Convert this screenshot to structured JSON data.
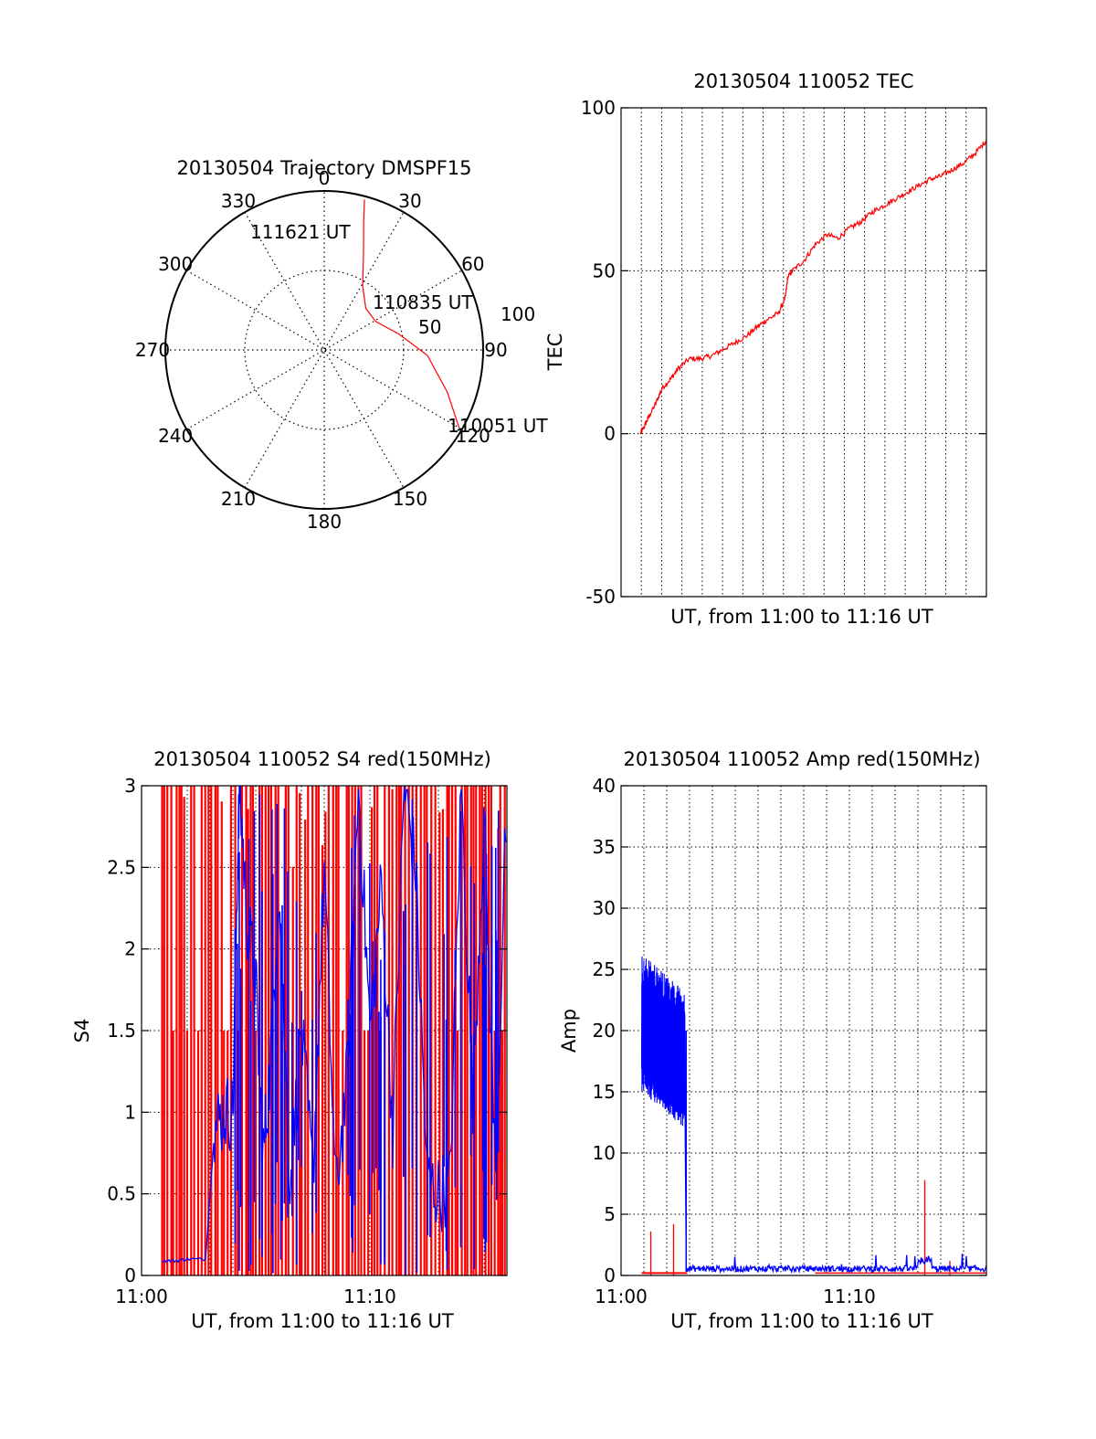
{
  "chart_data": [
    {
      "id": "trajectory",
      "type": "polar",
      "title": "20130504 Trajectory DMSPF15",
      "azimuth_labels": [
        "0",
        "30",
        "60",
        "90",
        "120",
        "150",
        "180",
        "210",
        "240",
        "270",
        "300",
        "330"
      ],
      "radial_labels": [
        "50",
        "100"
      ],
      "radial_range": [
        0,
        100
      ],
      "series": [
        {
          "name": "trajectory",
          "color": "#ff0000",
          "points": [
            [
              120,
              98
            ],
            [
              109,
              82
            ],
            [
              93,
              65
            ],
            [
              78,
              48
            ],
            [
              61,
              37
            ],
            [
              45,
              37
            ],
            [
              31,
              47
            ],
            [
              22,
              66
            ],
            [
              17,
              85
            ],
            [
              15,
              98
            ]
          ]
        }
      ],
      "annotations": [
        {
          "text": "111621 UT",
          "az": 337,
          "r": 80
        },
        {
          "text": "110835 UT",
          "az": 72,
          "r": 58
        },
        {
          "text": "110051 UT",
          "az": 118,
          "r": 104
        }
      ]
    },
    {
      "id": "tec",
      "type": "line",
      "title": "20130504 110052 TEC",
      "xlabel": "UT, from 11:00 to 11:16 UT",
      "ylabel": "TEC",
      "xlim": [
        0,
        16
      ],
      "ylim": [
        -50,
        100
      ],
      "yticks": [
        "-50",
        "0",
        "50",
        "100"
      ],
      "xticks": [],
      "grid": true,
      "series": [
        {
          "name": "TEC",
          "color": "#ff0000",
          "x": [
            0.85,
            1.0,
            1.2,
            1.5,
            1.8,
            2.2,
            2.5,
            3.0,
            3.5,
            4.0,
            4.5,
            5.0,
            5.5,
            6.0,
            6.4,
            6.9,
            7.2,
            7.3,
            7.5,
            8.0,
            8.5,
            9.0,
            9.5,
            10.0,
            10.5,
            11.0,
            11.5,
            12.0,
            12.5,
            13.0,
            13.5,
            14.0,
            14.5,
            15.0,
            15.5,
            16.0
          ],
          "y": [
            0,
            2,
            5,
            9,
            14,
            17,
            20,
            23,
            23,
            24,
            26,
            28,
            30,
            33,
            35,
            37,
            42,
            48,
            50,
            53,
            58,
            61,
            60,
            63,
            65,
            68,
            70,
            72,
            74,
            76,
            78,
            79,
            81,
            83,
            86,
            90
          ]
        }
      ]
    },
    {
      "id": "s4",
      "type": "line",
      "title": "20130504 110052 S4 red(150MHz)",
      "xlabel": "UT, from 11:00 to 11:16 UT",
      "ylabel": "S4",
      "xlim": [
        0,
        16
      ],
      "ylim": [
        0,
        3
      ],
      "yticks": [
        "0",
        "0.5",
        "1",
        "1.5",
        "2",
        "2.5",
        "3"
      ],
      "xticks": [
        {
          "value": 0,
          "label": "11:00"
        },
        {
          "value": 10,
          "label": "11:10"
        }
      ],
      "grid": true,
      "series": [
        {
          "name": "red",
          "color": "#ff0000",
          "style": "dense-vertical",
          "x_from": 0.9,
          "x_to": 16
        },
        {
          "name": "blue",
          "color": "#0000ff",
          "x": [
            0.9,
            1.5,
            2.0,
            2.8,
            3.2,
            3.6,
            4.0,
            4.2,
            4.3,
            4.6,
            5.0,
            5.3,
            5.6,
            6.0,
            6.5,
            7.0,
            7.5,
            8.0,
            8.5,
            9.0,
            9.5,
            10.0,
            10.5,
            11.0,
            11.5,
            12.0,
            12.5,
            13.0,
            13.5,
            14.0,
            14.5,
            15.0,
            15.5,
            16.0
          ],
          "y": [
            0.09,
            0.09,
            0.1,
            0.1,
            0.9,
            1.0,
            1.0,
            2.5,
            3.0,
            2.2,
            1.8,
            0.7,
            1.2,
            2.4,
            0.55,
            1.5,
            0.6,
            2.5,
            0.5,
            1.2,
            3.0,
            1.5,
            2.4,
            0.9,
            3.0,
            2.5,
            0.6,
            0.5,
            0.55,
            3.0,
            1.1,
            2.8,
            0.6,
            3.0
          ]
        }
      ]
    },
    {
      "id": "amp",
      "type": "line",
      "title": "20130504 110052 Amp red(150MHz)",
      "xlabel": "UT, from 11:00 to 11:16 UT",
      "ylabel": "Amp",
      "xlim": [
        0,
        16
      ],
      "ylim": [
        0,
        40
      ],
      "yticks": [
        "0",
        "5",
        "10",
        "15",
        "20",
        "25",
        "30",
        "35",
        "40"
      ],
      "xticks": [
        {
          "value": 0,
          "label": "11:00"
        },
        {
          "value": 10,
          "label": "11:10"
        }
      ],
      "grid": true,
      "series": [
        {
          "name": "blue",
          "color": "#0000ff",
          "burst": {
            "x_from": 0.9,
            "x_to": 2.8,
            "upper_start": 25,
            "upper_end": 22,
            "lower_start": 16,
            "lower_end": 13
          },
          "drop_x": 2.85,
          "baseline": 0.3
        },
        {
          "name": "red",
          "color": "#ff0000",
          "spikes": [
            [
              1.3,
              3.6
            ],
            [
              2.3,
              4.2
            ],
            [
              13.3,
              7.8
            ],
            [
              14.4,
              1.2
            ]
          ],
          "baseline": 0.2
        }
      ]
    }
  ]
}
